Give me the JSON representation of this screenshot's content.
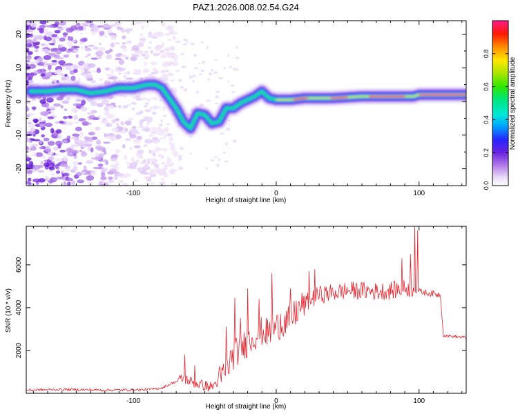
{
  "title": "PAZ1.2026.008.02.54.G24",
  "chart_data": [
    {
      "type": "heatmap",
      "name": "spectrogram",
      "xlabel": "Height of straight line (km)",
      "ylabel": "Frequency (Hz)",
      "xlim": [
        -175,
        133
      ],
      "ylim": [
        -25,
        24
      ],
      "x_ticks": [
        -100,
        0,
        100
      ],
      "y_ticks": [
        -20,
        -10,
        0,
        10,
        20
      ],
      "ridge": {
        "x": [
          -172,
          -160,
          -150,
          -140,
          -130,
          -120,
          -110,
          -100,
          -95,
          -90,
          -85,
          -80,
          -75,
          -70,
          -65,
          -60,
          -55,
          -50,
          -45,
          -40,
          -35,
          -30,
          -25,
          -20,
          -15,
          -10,
          -5,
          0,
          10,
          20,
          40,
          60,
          80,
          92,
          96,
          100,
          120,
          133
        ],
        "freq": [
          3,
          3,
          3.5,
          3.5,
          2.5,
          3,
          4,
          4,
          4.5,
          5,
          5,
          4,
          1,
          -2,
          -6,
          -8,
          -3.5,
          -4,
          -6.5,
          -6,
          -2,
          -2,
          -0.5,
          0.5,
          1.5,
          3,
          1,
          0.5,
          0.5,
          1,
          1,
          1.5,
          1.5,
          1.5,
          1.5,
          2,
          2,
          2
        ]
      },
      "colorbar": {
        "label": "Normalized spectral amplitude",
        "ticks": [
          "0.0",
          "0.2",
          "0.4",
          "0.6",
          "0.8"
        ],
        "range": [
          0,
          1
        ]
      }
    },
    {
      "type": "line",
      "name": "snr",
      "xlabel": "Height of straight line (km)",
      "ylabel": "SNR (10 * v/v)",
      "xlim": [
        -175,
        133
      ],
      "ylim": [
        0,
        7800
      ],
      "x_ticks": [
        -100,
        0,
        100
      ],
      "y_ticks": [
        2000,
        4000,
        6000
      ],
      "color": "#e8202a",
      "envelope": {
        "x": [
          -175,
          -150,
          -120,
          -100,
          -90,
          -80,
          -72,
          -65,
          -58,
          -50,
          -45,
          -40,
          -35,
          -30,
          -25,
          -20,
          -15,
          -10,
          -5,
          0,
          5,
          10,
          15,
          20,
          25,
          30,
          40,
          50,
          60,
          70,
          80,
          90,
          95,
          100,
          105,
          110,
          115,
          117,
          125,
          133
        ],
        "values": [
          150,
          180,
          150,
          160,
          170,
          250,
          500,
          700,
          500,
          350,
          300,
          600,
          1100,
          1800,
          2100,
          2400,
          2700,
          2900,
          2800,
          3100,
          3300,
          3400,
          3900,
          4200,
          4400,
          4600,
          4700,
          4800,
          4800,
          4750,
          4800,
          4900,
          4900,
          4750,
          4700,
          4650,
          4600,
          2700,
          2650,
          2600
        ]
      },
      "spikes": [
        {
          "x": -64,
          "value": 1800
        },
        {
          "x": -57,
          "value": 1300
        },
        {
          "x": -35,
          "value": 3100
        },
        {
          "x": -29,
          "value": 4450
        },
        {
          "x": -25,
          "value": 3500
        },
        {
          "x": -20,
          "value": 4900
        },
        {
          "x": -12,
          "value": 4400
        },
        {
          "x": -3,
          "value": 5600
        },
        {
          "x": 3,
          "value": 3700
        },
        {
          "x": 10,
          "value": 4900
        },
        {
          "x": 23,
          "value": 5700
        },
        {
          "x": 27,
          "value": 5800
        },
        {
          "x": 88,
          "value": 6300
        },
        {
          "x": 94,
          "value": 6500
        },
        {
          "x": 97,
          "value": 7800
        },
        {
          "x": 99,
          "value": 7600
        }
      ]
    }
  ]
}
